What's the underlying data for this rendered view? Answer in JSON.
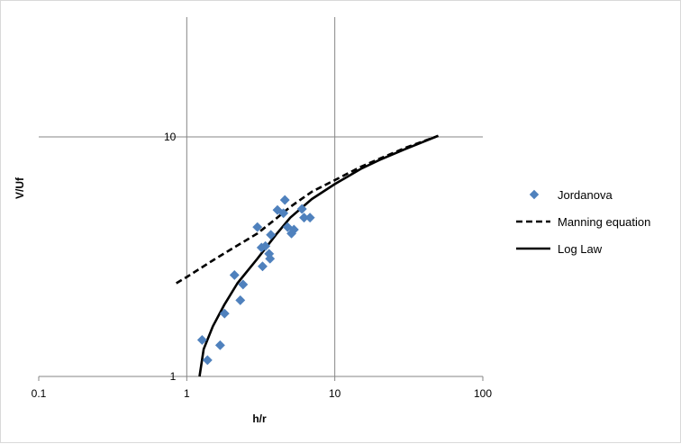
{
  "chart_data": {
    "type": "scatter",
    "title": "",
    "xlabel": "h/r",
    "ylabel": "V/Uf",
    "xscale": "log",
    "yscale": "log",
    "xlim": [
      0.1,
      100
    ],
    "ylim": [
      1,
      31.6
    ],
    "x_ticks": [
      {
        "value": 0.1,
        "label": "0.1"
      },
      {
        "value": 1,
        "label": "1"
      },
      {
        "value": 10,
        "label": "10"
      },
      {
        "value": 100,
        "label": "100"
      }
    ],
    "y_ticks": [
      {
        "value": 1,
        "label": "1"
      },
      {
        "value": 10,
        "label": "10"
      }
    ],
    "grid": "major",
    "legend_position": "right",
    "series": [
      {
        "name": "Jordanova",
        "kind": "scatter",
        "marker": "diamond",
        "color": "#4f81bd",
        "points": [
          [
            1.27,
            1.42
          ],
          [
            1.38,
            1.17
          ],
          [
            1.68,
            1.35
          ],
          [
            1.8,
            1.83
          ],
          [
            2.1,
            2.65
          ],
          [
            2.3,
            2.08
          ],
          [
            2.4,
            2.42
          ],
          [
            3.0,
            4.2
          ],
          [
            3.2,
            3.45
          ],
          [
            3.25,
            2.88
          ],
          [
            3.4,
            3.5
          ],
          [
            3.6,
            3.25
          ],
          [
            3.65,
            3.1
          ],
          [
            3.7,
            3.9
          ],
          [
            4.1,
            4.95
          ],
          [
            4.5,
            4.8
          ],
          [
            4.6,
            5.45
          ],
          [
            4.8,
            4.2
          ],
          [
            5.1,
            3.95
          ],
          [
            5.3,
            4.1
          ],
          [
            6.0,
            5.0
          ],
          [
            6.2,
            4.6
          ],
          [
            6.8,
            4.6
          ]
        ]
      },
      {
        "name": "Manning equation",
        "kind": "line",
        "style": "dashed",
        "color": "#000000",
        "points": [
          [
            0.85,
            2.45
          ],
          [
            1,
            2.6
          ],
          [
            1.5,
            3.05
          ],
          [
            2,
            3.4
          ],
          [
            3,
            3.95
          ],
          [
            4,
            4.55
          ],
          [
            5,
            5.1
          ],
          [
            7,
            5.9
          ],
          [
            10,
            6.6
          ],
          [
            15,
            7.5
          ],
          [
            20,
            8.1
          ],
          [
            30,
            9.0
          ],
          [
            50,
            10.1
          ]
        ]
      },
      {
        "name": "Log Law",
        "kind": "line",
        "style": "solid",
        "color": "#000000",
        "points": [
          [
            1.22,
            1.0
          ],
          [
            1.3,
            1.3
          ],
          [
            1.5,
            1.62
          ],
          [
            1.8,
            2.0
          ],
          [
            2.2,
            2.45
          ],
          [
            3,
            3.1
          ],
          [
            4,
            3.9
          ],
          [
            5,
            4.6
          ],
          [
            7,
            5.5
          ],
          [
            10,
            6.35
          ],
          [
            15,
            7.35
          ],
          [
            20,
            8.0
          ],
          [
            30,
            8.9
          ],
          [
            50,
            10.1
          ]
        ]
      }
    ]
  }
}
